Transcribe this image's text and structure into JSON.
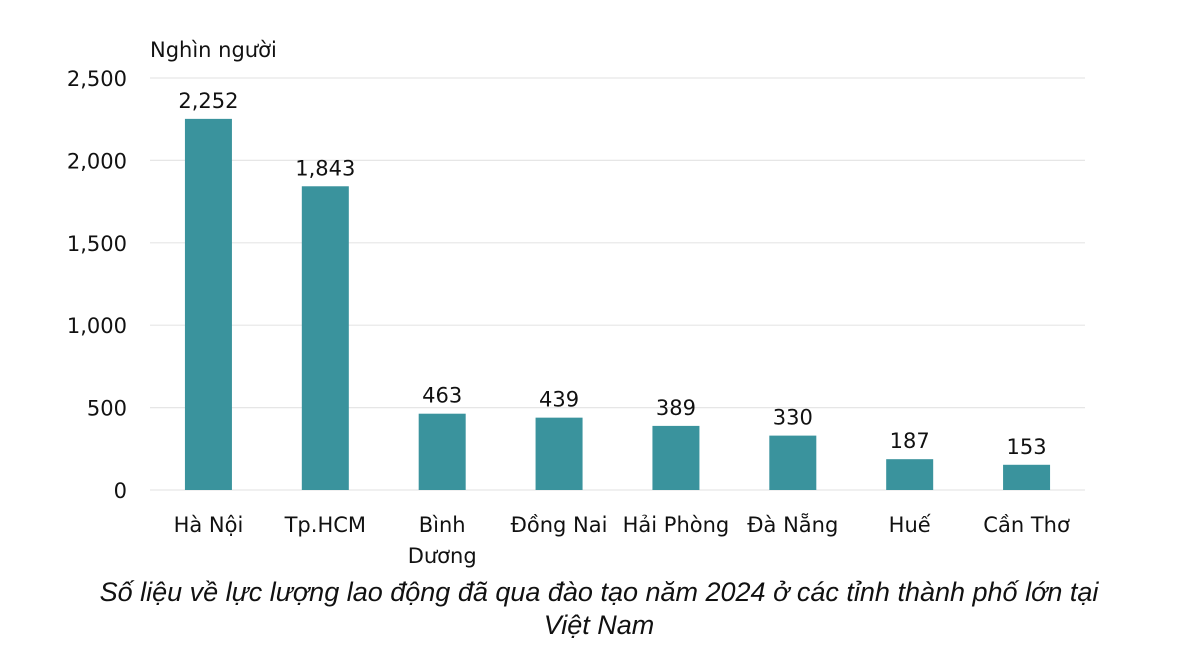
{
  "chart_data": {
    "type": "bar",
    "unit_label": "Nghìn người",
    "categories": [
      [
        "Hà Nội"
      ],
      [
        "Tp.HCM"
      ],
      [
        "Bình",
        "Dương"
      ],
      [
        "Đồng Nai"
      ],
      [
        "Hải Phòng"
      ],
      [
        "Đà Nẵng"
      ],
      [
        "Huế"
      ],
      [
        "Cần Thơ"
      ]
    ],
    "values": [
      2252,
      1843,
      463,
      439,
      389,
      330,
      187,
      153
    ],
    "value_labels": [
      "2,252",
      "1,843",
      "463",
      "439",
      "389",
      "330",
      "187",
      "153"
    ],
    "ylim": [
      0,
      2500
    ],
    "yticks": [
      0,
      500,
      1000,
      1500,
      2000,
      2500
    ],
    "ytick_labels": [
      "0",
      "500",
      "1,000",
      "1,500",
      "2,000",
      "2,500"
    ],
    "grid": true,
    "bar_color": "#3a939d",
    "grid_color": "#e6e6e6"
  },
  "caption": {
    "line1": "Số liệu về lực lượng lao động đã qua đào tạo năm 2024 ở các tỉnh thành phố lớn tại",
    "line2": "Việt Nam"
  }
}
